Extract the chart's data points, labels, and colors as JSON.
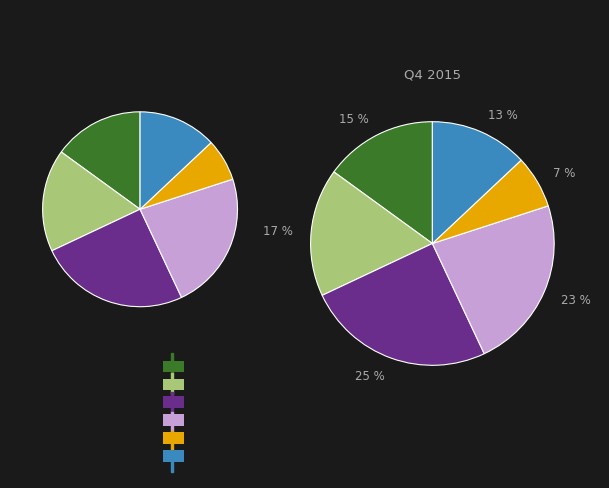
{
  "title_right": "Q4 2015",
  "slices": [
    15,
    17,
    25,
    23,
    7,
    13
  ],
  "labels_right": [
    "15 %",
    "17 %",
    "25 %",
    "23 %",
    "7 %",
    "13 %"
  ],
  "colors": [
    "#3a7a28",
    "#a8c878",
    "#6b2d8b",
    "#c8a0d8",
    "#e8a800",
    "#3a8abf"
  ],
  "legend_labels": [
    "",
    "",
    "",
    "",
    "",
    ""
  ],
  "startangle": 90,
  "figure_bg": "#1a1a1a",
  "text_color": "#aaaaaa",
  "title_color": "#aaaaaa"
}
